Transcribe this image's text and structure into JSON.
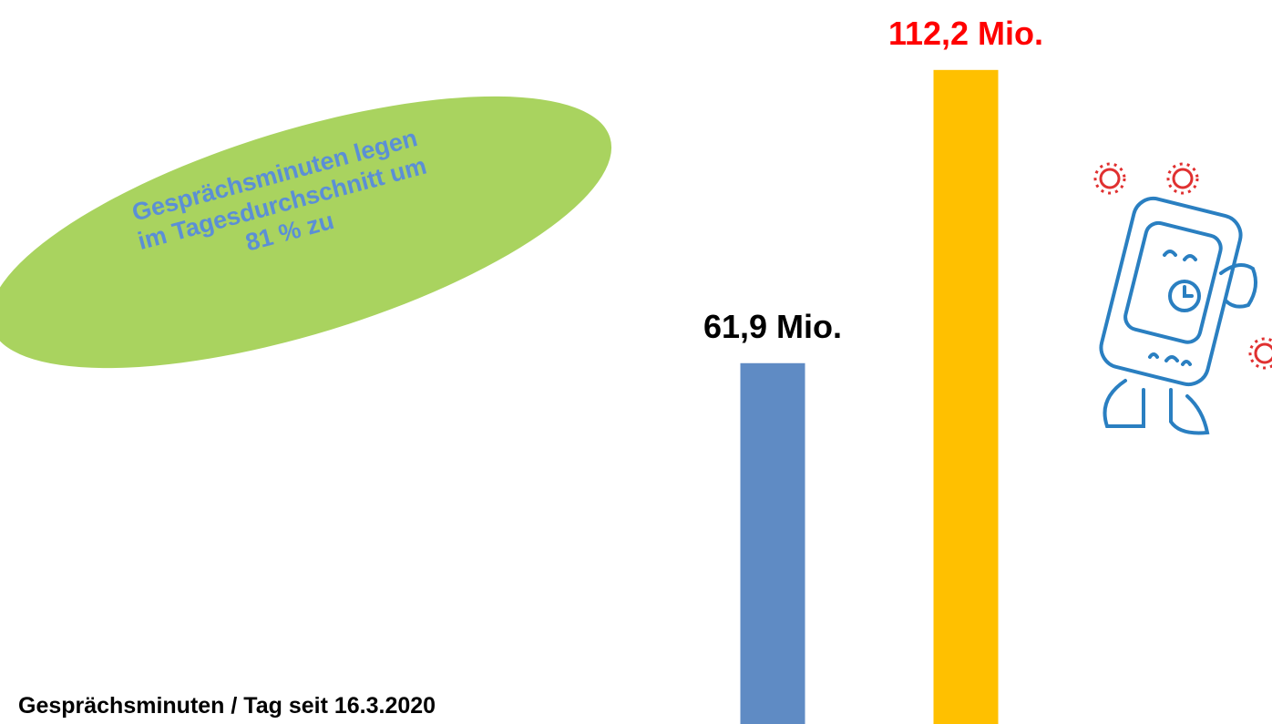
{
  "chart_data": {
    "type": "bar",
    "categories": [
      null,
      null
    ],
    "values": [
      61.9,
      112.2
    ],
    "value_labels": [
      "61,9 Mio.",
      "112,2 Mio."
    ],
    "colors": [
      "#5f8bc4",
      "#ffc000"
    ],
    "value_label_colors": [
      "#000000",
      "#ff0000"
    ],
    "ylim": [
      0,
      124.2
    ],
    "annotation": [
      "Gesprächsminuten legen",
      "im Tagesdurchschnitt um",
      "81 % zu"
    ],
    "footnote": "Gesprächsminuten / Tag seit 16.3.2020"
  }
}
